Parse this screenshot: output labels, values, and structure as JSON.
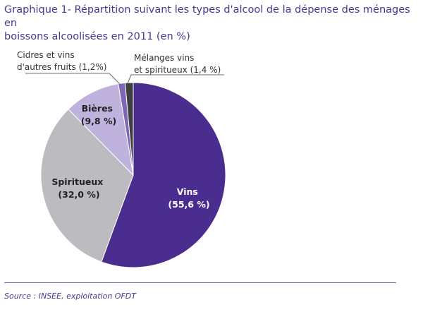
{
  "title_line1": "Graphique 1- Répartition suivant les types d'alcool de la dépense des ménages en",
  "title_line2": "boissons alcoolisées en 2011 (en %)",
  "source": "Source : INSEE, exploitation OFDT",
  "colors": {
    "title": "#4b3592",
    "rule": "#7a64b4"
  },
  "chart_data": {
    "type": "pie",
    "start_angle_deg": 0,
    "direction": "clockwise",
    "slices": [
      {
        "name": "Vins",
        "pct_label": "(55,6 %)",
        "value": 55.6,
        "color": "#4b2d8f",
        "label_light": true
      },
      {
        "name": "Spiritueux",
        "pct_label": "(32,0 %)",
        "value": 32.0,
        "color": "#bcbcc0",
        "label_light": false
      },
      {
        "name": "Bières",
        "pct_label": "(9,8 %)",
        "value": 9.8,
        "color": "#bfb3dd",
        "label_light": false
      },
      {
        "name": "Cidres et vins d'autres fruits",
        "line1": "Cidres et vins",
        "line2": "d'autres fruits (1,2%)",
        "value": 1.2,
        "color": "#7c68b6",
        "callout": true
      },
      {
        "name": "Mélanges vins et spiritueux",
        "line1": "Mélanges vins",
        "line2": "et spiritueux (1,4 %)",
        "value": 1.4,
        "color": "#3f3f42",
        "callout": true
      }
    ]
  }
}
